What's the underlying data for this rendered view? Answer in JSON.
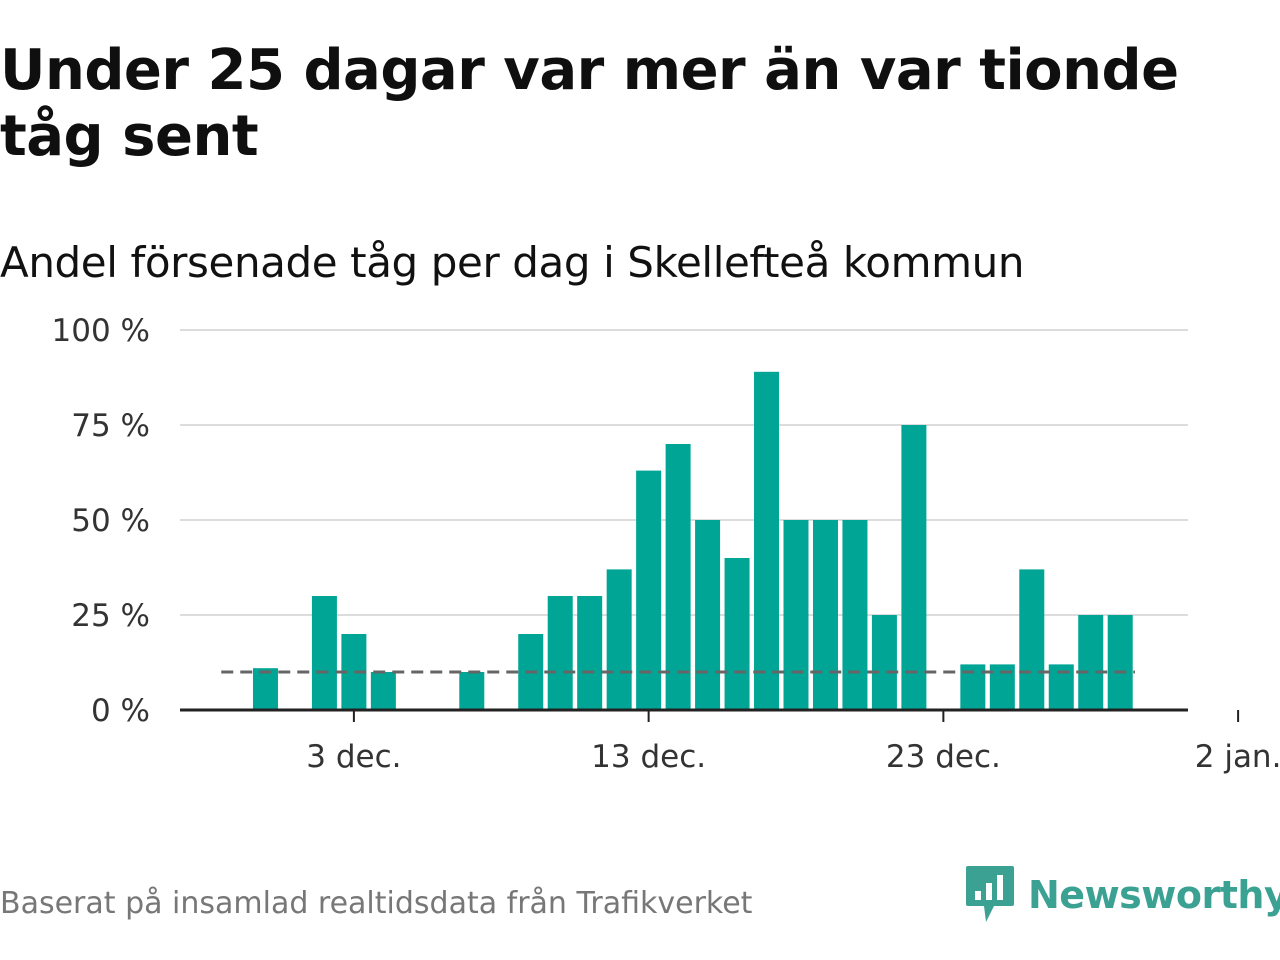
{
  "title": "Under 25 dagar var mer än var tionde tåg sent",
  "subtitle": "Andel försenade tåg per dag i Skellefteå kommun",
  "footer": {
    "source": "Baserat på insamlad realtidsdata från Trafikverket",
    "brand": "Newsworthy"
  },
  "colors": {
    "bar": "#00a596",
    "reference_line": "#666666",
    "grid": "#dcdcdc",
    "axis": "#222222",
    "brand": "#3aa193"
  },
  "chart_data": {
    "type": "bar",
    "title": "Under 25 dagar var mer än var tionde tåg sent",
    "subtitle": "Andel försenade tåg per dag i Skellefteå kommun",
    "xlabel": "",
    "ylabel": "",
    "ylim": [
      0,
      100
    ],
    "yticks": [
      0,
      25,
      50,
      75,
      100
    ],
    "ytick_labels": [
      "0 %",
      "25 %",
      "50 %",
      "75 %",
      "100 %"
    ],
    "x_domain_days": [
      -3.9,
      30.3
    ],
    "xticks": [
      {
        "day": 2,
        "label": "3 dec."
      },
      {
        "day": 12,
        "label": "13 dec."
      },
      {
        "day": 22,
        "label": "23 dec."
      },
      {
        "day": 32,
        "label": "2 jan."
      }
    ],
    "day_offset_note": "day 0 = 1 dec.",
    "reference_line": {
      "value": 10,
      "label": "",
      "from_day": -2.5,
      "to_day": 28.5
    },
    "bars": [
      {
        "day": -1,
        "date": "30 nov.",
        "value": 11
      },
      {
        "day": 1,
        "date": "2 dec.",
        "value": 30
      },
      {
        "day": 2,
        "date": "3 dec.",
        "value": 20
      },
      {
        "day": 3,
        "date": "4 dec.",
        "value": 10
      },
      {
        "day": 6,
        "date": "7 dec.",
        "value": 10
      },
      {
        "day": 8,
        "date": "9 dec.",
        "value": 20
      },
      {
        "day": 9,
        "date": "10 dec.",
        "value": 30
      },
      {
        "day": 10,
        "date": "11 dec.",
        "value": 30
      },
      {
        "day": 11,
        "date": "12 dec.",
        "value": 37
      },
      {
        "day": 12,
        "date": "13 dec.",
        "value": 63
      },
      {
        "day": 13,
        "date": "14 dec.",
        "value": 70
      },
      {
        "day": 14,
        "date": "15 dec.",
        "value": 50
      },
      {
        "day": 15,
        "date": "16 dec.",
        "value": 40
      },
      {
        "day": 16,
        "date": "17 dec.",
        "value": 89
      },
      {
        "day": 17,
        "date": "18 dec.",
        "value": 50
      },
      {
        "day": 18,
        "date": "19 dec.",
        "value": 50
      },
      {
        "day": 19,
        "date": "20 dec.",
        "value": 50
      },
      {
        "day": 20,
        "date": "21 dec.",
        "value": 25
      },
      {
        "day": 21,
        "date": "22 dec.",
        "value": 75
      },
      {
        "day": 23,
        "date": "24 dec.",
        "value": 12
      },
      {
        "day": 24,
        "date": "25 dec.",
        "value": 12
      },
      {
        "day": 25,
        "date": "26 dec.",
        "value": 37
      },
      {
        "day": 26,
        "date": "27 dec.",
        "value": 12
      },
      {
        "day": 27,
        "date": "28 dec.",
        "value": 25
      },
      {
        "day": 28,
        "date": "29 dec.",
        "value": 25
      }
    ]
  }
}
